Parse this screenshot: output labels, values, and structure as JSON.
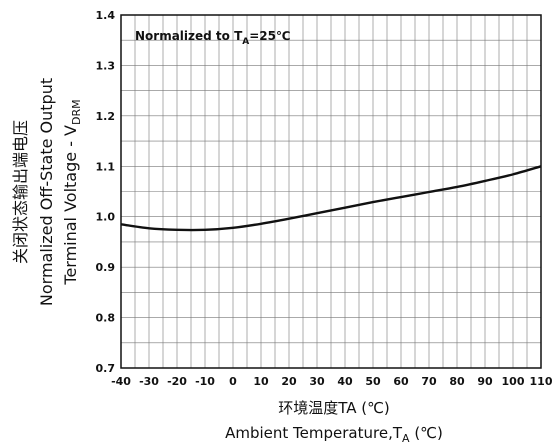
{
  "chart_data": {
    "type": "line",
    "title": "",
    "annotation": {
      "prefix": "Normalized to T",
      "sub": "A",
      "suffix": "=25℃"
    },
    "xlabel_cn": "环境温度TA (℃)",
    "xlabel_en": {
      "prefix": "Ambient Temperature,T",
      "sub": "A",
      "suffix": " (℃)"
    },
    "ylabel_cn": "关闭状态输出端电压",
    "ylabel_en_1": "Normalized Off-State Output",
    "ylabel_en_2": {
      "prefix": "Terminal Voltage - V",
      "sub": "DRM"
    },
    "xlim": [
      -40,
      110
    ],
    "ylim": [
      0.7,
      1.4
    ],
    "x_ticks": [
      "-40",
      "-30",
      "-20",
      "-10",
      "0",
      "10",
      "20",
      "30",
      "40",
      "50",
      "60",
      "70",
      "80",
      "90",
      "100",
      "110"
    ],
    "y_ticks": [
      "0.7",
      "0.8",
      "0.9",
      "1.0",
      "1.1",
      "1.2",
      "1.3",
      "1.4"
    ],
    "grid": true,
    "series": [
      {
        "x": [
          -40,
          -30,
          -20,
          -10,
          0,
          10,
          20,
          30,
          40,
          50,
          60,
          70,
          80,
          90,
          100,
          110
        ],
        "y": [
          0.985,
          0.977,
          0.974,
          0.974,
          0.978,
          0.986,
          0.996,
          1.007,
          1.018,
          1.029,
          1.039,
          1.049,
          1.059,
          1.071,
          1.084,
          1.1
        ]
      }
    ]
  }
}
